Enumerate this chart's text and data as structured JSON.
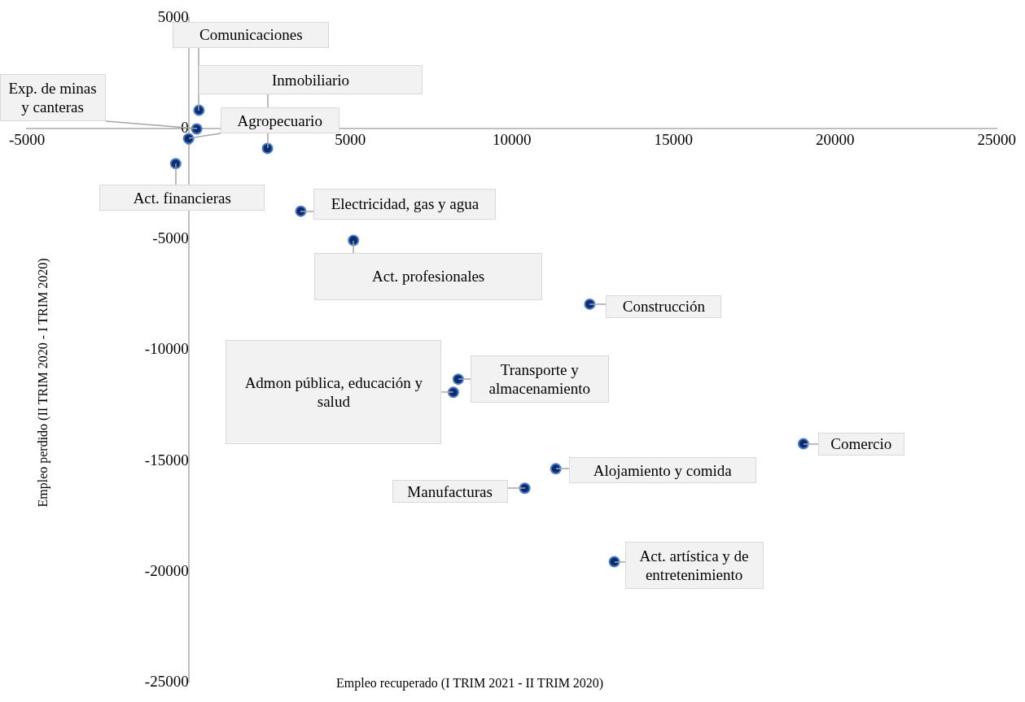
{
  "chart_data": {
    "type": "scatter",
    "xlabel": "Empleo recuperado (I TRIM 2021 - II TRIM 2020)",
    "ylabel": "Empleo perdido (II TRIM 2020 - I TRIM 2020)",
    "x": [
      320,
      2440,
      250,
      0,
      -400,
      3470,
      5100,
      12410,
      8340,
      8190,
      19020,
      11360,
      10400,
      13170
    ],
    "series": [
      {
        "color": "#0b2c6e",
        "values": [
          840,
          -880,
          0,
          -440,
          -1570,
          -3720,
          -5040,
          -7920,
          -11310,
          -11900,
          -14230,
          -15360,
          -16240,
          -19560
        ]
      }
    ],
    "xlim": [
      -5000,
      25000
    ],
    "xticks": [
      -5000,
      0,
      5000,
      10000,
      15000,
      20000,
      25000
    ],
    "ylim": [
      -25000,
      5000
    ],
    "yticks": [
      -25000,
      -20000,
      -15000,
      -10000,
      -5000,
      0,
      5000
    ],
    "grid": false,
    "legend": false,
    "marker": "circle",
    "annotations": [
      {
        "text": "Comunicaciones",
        "x": 320,
        "y": 840
      },
      {
        "text": "Inmobiliario",
        "x": 2440,
        "y": -880
      },
      {
        "text": "Exp. de minas y canteras",
        "x": 250,
        "y": 0
      },
      {
        "text": "Agropecuario",
        "x": 0,
        "y": -440
      },
      {
        "text": "Act. financieras",
        "x": -400,
        "y": -1570
      },
      {
        "text": "Electricidad, gas y agua",
        "x": 3470,
        "y": -3720
      },
      {
        "text": "Act. profesionales",
        "x": 5100,
        "y": -5040
      },
      {
        "text": "Construcción",
        "x": 12410,
        "y": -7920
      },
      {
        "text": "Transporte y almacenamiento",
        "x": 8340,
        "y": -11310
      },
      {
        "text": "Admon pública, educación y salud",
        "x": 8190,
        "y": -11900
      },
      {
        "text": "Comercio",
        "x": 19020,
        "y": -14230
      },
      {
        "text": "Alojamiento y comida",
        "x": 11360,
        "y": -15360
      },
      {
        "text": "Manufacturas",
        "x": 10400,
        "y": -16240
      },
      {
        "text": "Act. artística y de entretenimiento",
        "x": 13170,
        "y": -19560
      }
    ]
  }
}
